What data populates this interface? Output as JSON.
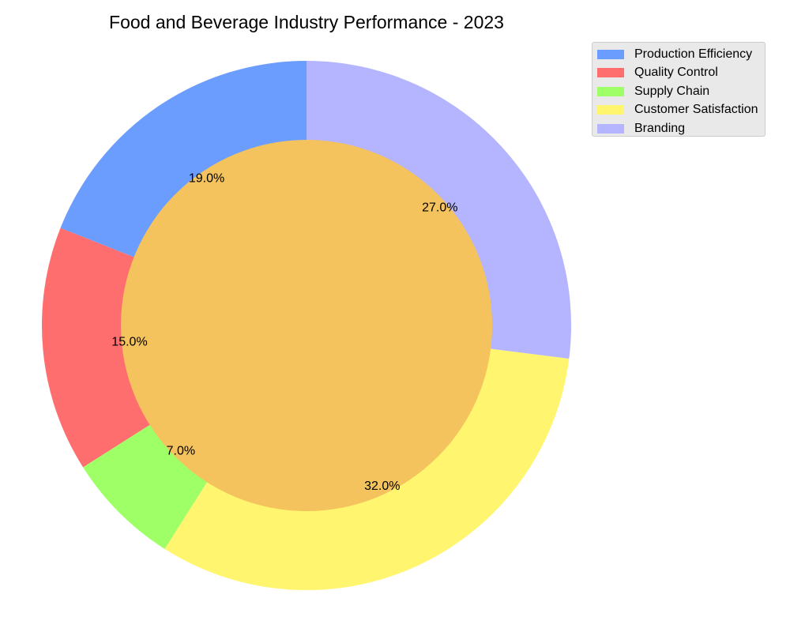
{
  "chart_data": {
    "type": "pie",
    "style": "donut",
    "title": "Food and Beverage Industry Performance - 2023",
    "categories": [
      "Production Efficiency",
      "Quality Control",
      "Supply Chain",
      "Customer Satisfaction",
      "Branding"
    ],
    "values": [
      19.0,
      15.0,
      7.0,
      32.0,
      27.0
    ],
    "labels": [
      "19.0%",
      "15.0%",
      "7.0%",
      "32.0%",
      "27.0%"
    ],
    "colors": [
      "#6b9dff",
      "#ff6e6e",
      "#9eff66",
      "#fff56e",
      "#b5b5ff"
    ],
    "center_color": "#f4c35d",
    "start_angle_deg": 90,
    "direction": "counterclockwise",
    "legend_position": "top-right",
    "grid": false
  }
}
